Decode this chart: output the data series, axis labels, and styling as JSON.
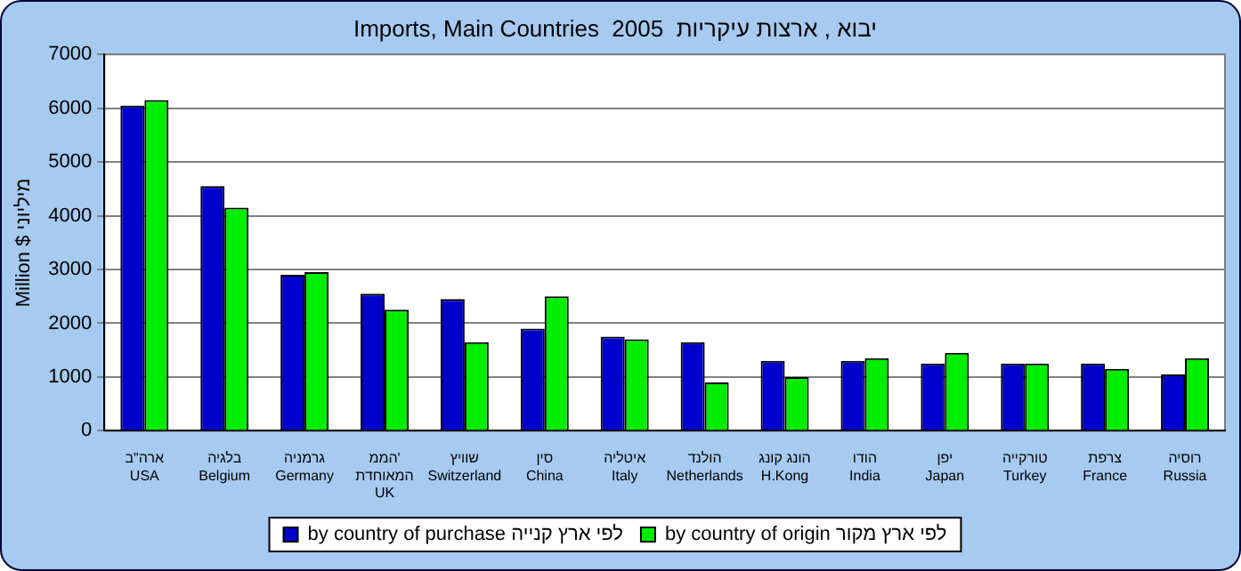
{
  "chart_data": {
    "type": "bar",
    "title": "Imports, Main Countries  2005  יבוא , ארצות עיקריות",
    "ylabel": "Million $ מיליוני",
    "categories": [
      "ארה\"ב\nUSA",
      "בלגיה\nBelgium",
      "גרמניה\nGermany",
      "הממ' המאוחדת\nUK",
      "שוויץ\nSwitzerland",
      "סין\nChina",
      "איטליה\nItaly",
      "הולנד\nNetherlands",
      "הונג קונג\nH.Kong",
      "הודו\nIndia",
      "יפן\nJapan",
      "טורקייה\nTurkey",
      "צרפת\nFrance",
      "רוסיה\nRussia"
    ],
    "series": [
      {
        "name": "by country of purchase לפי ארץ קנייה",
        "color": "#0000cc",
        "values": [
          6050,
          4550,
          2900,
          2550,
          2450,
          1900,
          1750,
          1650,
          1300,
          1300,
          1250,
          1250,
          1250,
          1050
        ]
      },
      {
        "name": "by country of origin לפי ארץ מקור",
        "color": "#00ee00",
        "values": [
          6150,
          4150,
          2950,
          2250,
          1650,
          2500,
          1700,
          900,
          1000,
          1350,
          1450,
          1250,
          1150,
          1350
        ]
      }
    ],
    "ylim": [
      0,
      7000
    ],
    "yticks": [
      0,
      1000,
      2000,
      3000,
      4000,
      5000,
      6000,
      7000
    ],
    "grid": "y",
    "legend": "bottom"
  }
}
